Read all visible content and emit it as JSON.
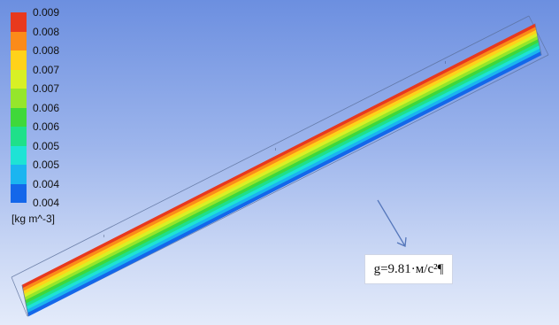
{
  "legend": {
    "labels": [
      "0.009",
      "0.008",
      "0.008",
      "0.007",
      "0.007",
      "0.006",
      "0.006",
      "0.005",
      "0.005",
      "0.004",
      "0.004"
    ],
    "unit": "[kg m^-3]",
    "colors": [
      "#e8391e",
      "#fb8b1a",
      "#ffd21a",
      "#d8f025",
      "#95e62b",
      "#3fd83a",
      "#1fe08a",
      "#1ee3d5",
      "#1bb5f0",
      "#1467ea"
    ]
  },
  "gravity": {
    "label": "g=9.81·м/c²¶"
  },
  "pipe_colors": [
    "#e8391e",
    "#fb8b1a",
    "#ffd21a",
    "#d8f025",
    "#95e62b",
    "#3fd83a",
    "#1fe08a",
    "#1ee3d5",
    "#1bb5f0",
    "#1467ea"
  ],
  "arrow_color": "#5577bb"
}
